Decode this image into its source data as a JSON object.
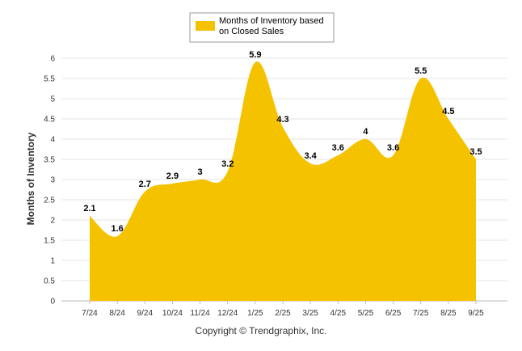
{
  "chart_data": {
    "type": "area",
    "categories": [
      "7/24",
      "8/24",
      "9/24",
      "10/24",
      "11/24",
      "12/24",
      "1/25",
      "2/25",
      "3/25",
      "4/25",
      "5/25",
      "6/25",
      "7/25",
      "8/25",
      "9/25"
    ],
    "series": [
      {
        "name": "Months of Inventory based on Closed Sales",
        "values": [
          2.1,
          1.6,
          2.7,
          2.9,
          3,
          3.2,
          5.9,
          4.3,
          3.4,
          3.6,
          4,
          3.6,
          5.5,
          4.5,
          3.5
        ],
        "color": "#F5C200"
      }
    ],
    "data_labels": [
      "2.1",
      "1.6",
      "2.7",
      "2.9",
      "3",
      "3.2",
      "5.9",
      "4.3",
      "3.4",
      "3.6",
      "4",
      "3.6",
      "5.5",
      "4.5",
      "3.5"
    ],
    "y_ticks": [
      "0",
      "0.5",
      "1",
      "1.5",
      "2",
      "2.5",
      "3",
      "3.5",
      "4",
      "4.5",
      "5",
      "5.5",
      "6"
    ],
    "ylabel": "Months of Inventory",
    "xlabel": "",
    "ylim": [
      0,
      6
    ],
    "grid": true,
    "legend": {
      "position": "top-center",
      "lines": [
        "Months of Inventory based",
        "on Closed Sales"
      ]
    }
  },
  "copyright": "Copyright © Trendgraphix, Inc."
}
